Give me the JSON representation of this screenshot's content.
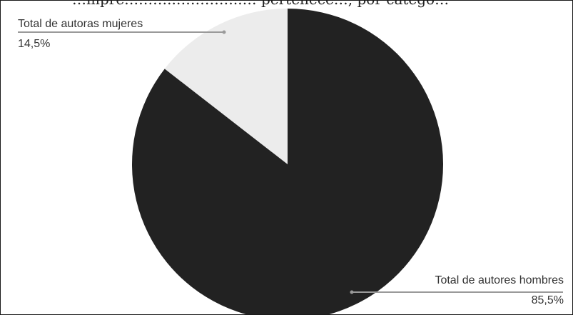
{
  "header": {
    "caption_text": "…mpre………..…………..… pertenece…, por catego…"
  },
  "chart_data": {
    "type": "pie",
    "title": "",
    "categories": [
      "Total de autoras mujeres",
      "Total de autores hombres"
    ],
    "values": [
      14.5,
      85.5
    ],
    "value_labels": [
      "14,5%",
      "85,5%"
    ],
    "colors": [
      "#ececec",
      "#222222"
    ],
    "legend": "none",
    "grid": false
  },
  "labels": {
    "women_label": "Total de autoras mujeres",
    "women_value": "14,5%",
    "men_label": "Total de autores hombres",
    "men_value": "85,5%"
  }
}
